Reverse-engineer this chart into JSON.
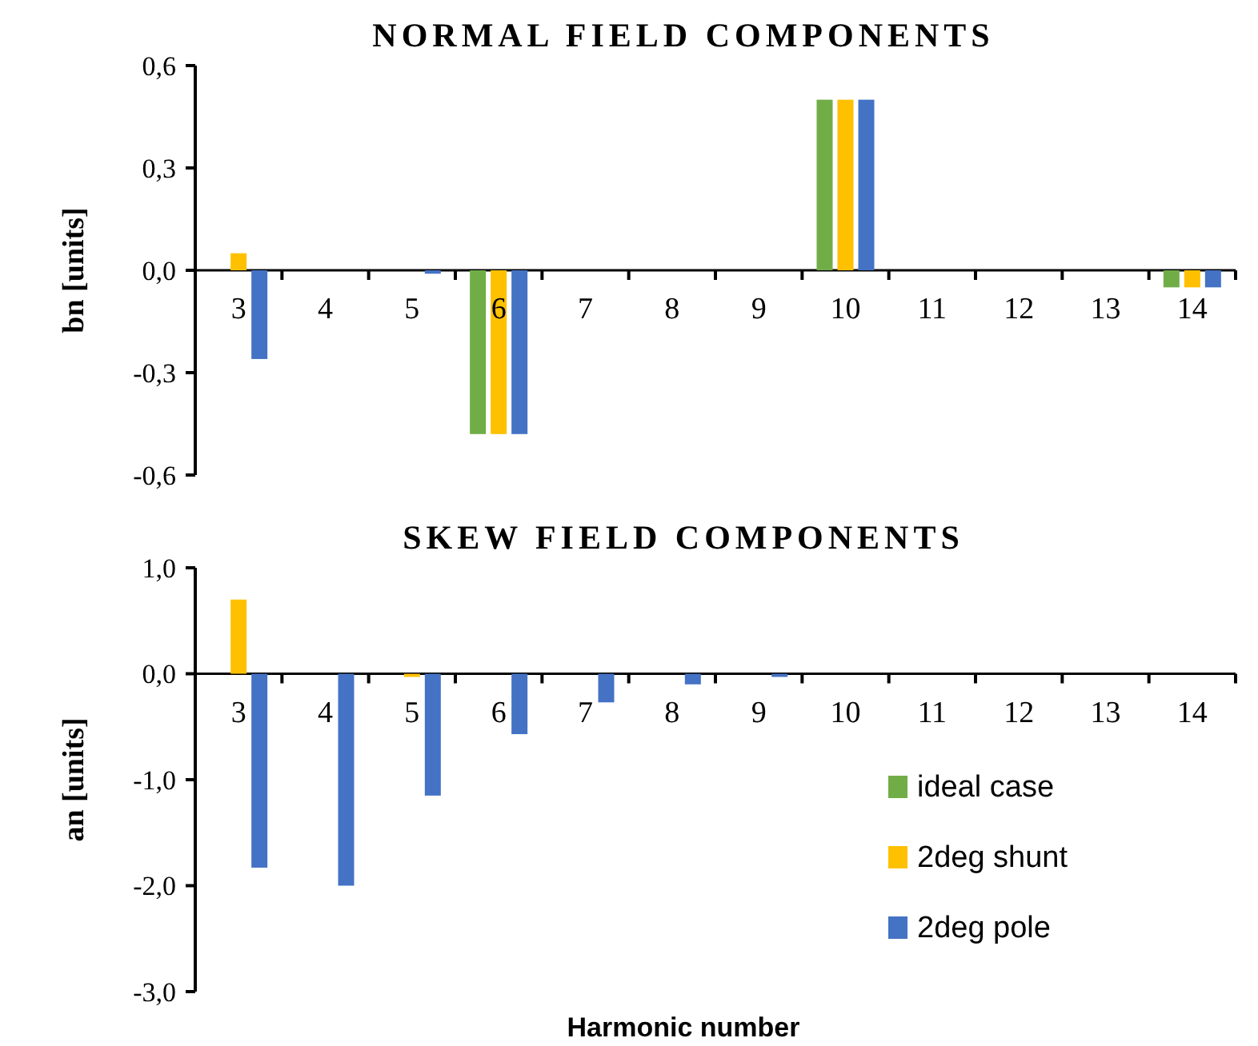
{
  "chart_data": [
    {
      "type": "bar",
      "title": "NORMAL FIELD COMPONENTS",
      "ylabel": "bn [units]",
      "categories": [
        "3",
        "4",
        "5",
        "6",
        "7",
        "8",
        "9",
        "10",
        "11",
        "12",
        "13",
        "14"
      ],
      "series": [
        {
          "color": "#70ad47",
          "values": [
            0,
            0,
            0,
            -0.48,
            0,
            0,
            0,
            0.5,
            0,
            0,
            0,
            -0.05
          ]
        },
        {
          "color": "#ffc000",
          "values": [
            0.05,
            0,
            0,
            -0.48,
            0,
            0,
            0,
            0.5,
            0,
            0,
            0,
            -0.05
          ]
        },
        {
          "color": "#4472c4",
          "values": [
            -0.26,
            0,
            -0.01,
            -0.48,
            0,
            0,
            0,
            0.5,
            0,
            0,
            0,
            -0.05
          ]
        }
      ],
      "ylim": [
        -0.6,
        0.6
      ],
      "yticks": [
        {
          "value": -0.6,
          "label": "-0,6"
        },
        {
          "value": -0.3,
          "label": "-0,3"
        },
        {
          "value": 0,
          "label": "0,0"
        },
        {
          "value": 0.3,
          "label": "0,3"
        },
        {
          "value": 0.6,
          "label": "0,6"
        }
      ],
      "grid": false,
      "legend": false
    },
    {
      "type": "bar",
      "title": "SKEW FIELD COMPONENTS",
      "ylabel": "an [units]",
      "xlabel": "Harmonic number",
      "categories": [
        "3",
        "4",
        "5",
        "6",
        "7",
        "8",
        "9",
        "10",
        "11",
        "12",
        "13",
        "14"
      ],
      "series": [
        {
          "name": "ideal case",
          "color": "#70ad47",
          "values": [
            0,
            0,
            0,
            0,
            0,
            0,
            0,
            0,
            0,
            0,
            0,
            0
          ]
        },
        {
          "name": "2deg shunt",
          "color": "#ffc000",
          "values": [
            0.7,
            0,
            -0.03,
            0,
            0,
            0,
            0,
            0,
            0,
            0,
            0,
            0
          ]
        },
        {
          "name": "2deg pole",
          "color": "#4472c4",
          "values": [
            -1.83,
            -2.0,
            -1.15,
            -0.57,
            -0.27,
            -0.1,
            -0.03,
            0,
            0,
            0,
            0,
            0
          ]
        }
      ],
      "ylim": [
        -3,
        1
      ],
      "yticks": [
        {
          "value": -3,
          "label": "-3,0"
        },
        {
          "value": -2,
          "label": "-2,0"
        },
        {
          "value": -1,
          "label": "-1,0"
        },
        {
          "value": 0,
          "label": "0,0"
        },
        {
          "value": 1,
          "label": "1,0"
        }
      ],
      "grid": false,
      "legend": "bottom right"
    }
  ]
}
